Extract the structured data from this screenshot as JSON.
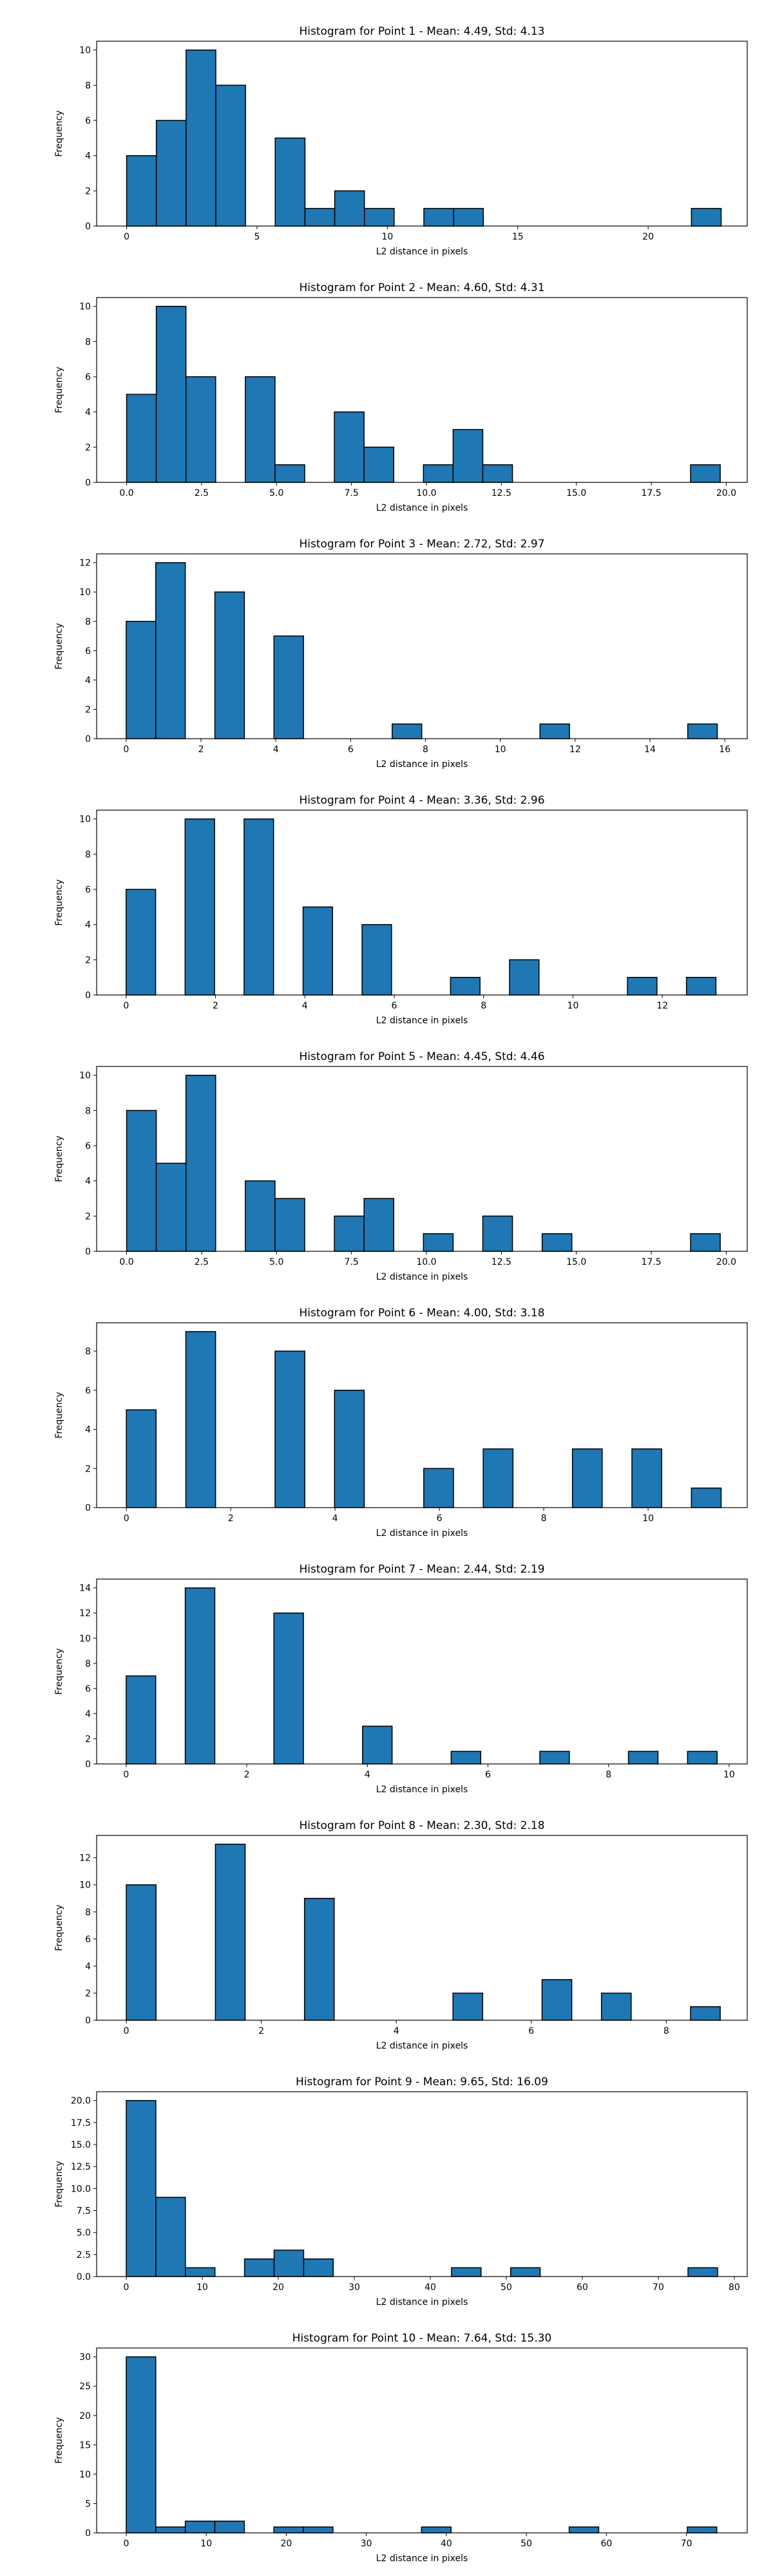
{
  "chart_data": [
    {
      "type": "bar",
      "title": "Histogram for Point 1 - Mean: 4.49, Std: 4.13",
      "xlabel": "L2 distance in pixels",
      "ylabel": "Frequency",
      "xlim": [
        -1.15,
        23.8
      ],
      "ylim": [
        0,
        10.5
      ],
      "xticks": [
        0,
        5,
        10,
        15,
        20
      ],
      "xtick_labels": [
        "0",
        "5",
        "10",
        "15",
        "20"
      ],
      "yticks": [
        0,
        2,
        4,
        6,
        8,
        10
      ],
      "ytick_labels": [
        "0",
        "2",
        "4",
        "6",
        "8",
        "10"
      ],
      "bin_start": 0.0,
      "bin_width": 1.14,
      "values": [
        4,
        6,
        10,
        8,
        0,
        5,
        1,
        2,
        1,
        0,
        1,
        1,
        0,
        0,
        0,
        0,
        0,
        0,
        0,
        1
      ]
    },
    {
      "type": "bar",
      "title": "Histogram for Point 2 - Mean: 4.60, Std: 4.31",
      "xlabel": "L2 distance in pixels",
      "ylabel": "Frequency",
      "xlim": [
        -1.0,
        20.7
      ],
      "ylim": [
        0,
        10.5
      ],
      "xticks": [
        0,
        2.5,
        5,
        7.5,
        10,
        12.5,
        15,
        17.5,
        20
      ],
      "xtick_labels": [
        "0.0",
        "2.5",
        "5.0",
        "7.5",
        "10.0",
        "12.5",
        "15.0",
        "17.5",
        "20.0"
      ],
      "yticks": [
        0,
        2,
        4,
        6,
        8,
        10
      ],
      "ytick_labels": [
        "0",
        "2",
        "4",
        "6",
        "8",
        "10"
      ],
      "bin_start": 0.0,
      "bin_width": 0.99,
      "values": [
        5,
        10,
        6,
        0,
        6,
        1,
        0,
        4,
        2,
        0,
        1,
        3,
        1,
        0,
        0,
        0,
        0,
        0,
        0,
        1
      ]
    },
    {
      "type": "bar",
      "title": "Histogram for Point 3 - Mean: 2.72, Std: 2.97",
      "xlabel": "L2 distance in pixels",
      "ylabel": "Frequency",
      "xlim": [
        -0.79,
        16.6
      ],
      "ylim": [
        0,
        12.6
      ],
      "xticks": [
        0,
        2,
        4,
        6,
        8,
        10,
        12,
        14,
        16
      ],
      "xtick_labels": [
        "0",
        "2",
        "4",
        "6",
        "8",
        "10",
        "12",
        "14",
        "16"
      ],
      "yticks": [
        0,
        2,
        4,
        6,
        8,
        10,
        12
      ],
      "ytick_labels": [
        "0",
        "2",
        "4",
        "6",
        "8",
        "10",
        "12"
      ],
      "bin_start": 0.0,
      "bin_width": 0.79,
      "values": [
        8,
        12,
        0,
        10,
        0,
        7,
        0,
        0,
        0,
        1,
        0,
        0,
        0,
        0,
        1,
        0,
        0,
        0,
        0,
        1
      ]
    },
    {
      "type": "bar",
      "title": "Histogram for Point 4 - Mean: 3.36, Std: 2.96",
      "xlabel": "L2 distance in pixels",
      "ylabel": "Frequency",
      "xlim": [
        -0.66,
        13.9
      ],
      "ylim": [
        0,
        10.5
      ],
      "xticks": [
        0,
        2,
        4,
        6,
        8,
        10,
        12
      ],
      "xtick_labels": [
        "0",
        "2",
        "4",
        "6",
        "8",
        "10",
        "12"
      ],
      "yticks": [
        0,
        2,
        4,
        6,
        8,
        10
      ],
      "ytick_labels": [
        "0",
        "2",
        "4",
        "6",
        "8",
        "10"
      ],
      "bin_start": 0.0,
      "bin_width": 0.66,
      "values": [
        6,
        0,
        10,
        0,
        10,
        0,
        5,
        0,
        4,
        0,
        0,
        1,
        0,
        2,
        0,
        0,
        0,
        1,
        0,
        1
      ]
    },
    {
      "type": "bar",
      "title": "Histogram for Point 5 - Mean: 4.45, Std: 4.46",
      "xlabel": "L2 distance in pixels",
      "ylabel": "Frequency",
      "xlim": [
        -1.0,
        20.7
      ],
      "ylim": [
        0,
        10.5
      ],
      "xticks": [
        0,
        2.5,
        5,
        7.5,
        10,
        12.5,
        15,
        17.5,
        20
      ],
      "xtick_labels": [
        "0.0",
        "2.5",
        "5.0",
        "7.5",
        "10.0",
        "12.5",
        "15.0",
        "17.5",
        "20.0"
      ],
      "yticks": [
        0,
        2,
        4,
        6,
        8,
        10
      ],
      "ytick_labels": [
        "0",
        "2",
        "4",
        "6",
        "8",
        "10"
      ],
      "bin_start": 0.0,
      "bin_width": 0.99,
      "values": [
        8,
        5,
        10,
        0,
        4,
        3,
        0,
        2,
        3,
        0,
        1,
        0,
        2,
        0,
        1,
        0,
        0,
        0,
        0,
        1
      ]
    },
    {
      "type": "bar",
      "title": "Histogram for Point 6 - Mean: 4.00, Std: 3.18",
      "xlabel": "L2 distance in pixels",
      "ylabel": "Frequency",
      "xlim": [
        -0.57,
        11.9
      ],
      "ylim": [
        0,
        9.45
      ],
      "xticks": [
        0,
        2,
        4,
        6,
        8,
        10
      ],
      "xtick_labels": [
        "0",
        "2",
        "4",
        "6",
        "8",
        "10"
      ],
      "yticks": [
        0,
        2,
        4,
        6,
        8
      ],
      "ytick_labels": [
        "0",
        "2",
        "4",
        "6",
        "8"
      ],
      "bin_start": 0.0,
      "bin_width": 0.57,
      "values": [
        5,
        0,
        9,
        0,
        0,
        8,
        0,
        6,
        0,
        0,
        2,
        0,
        3,
        0,
        0,
        3,
        0,
        3,
        0,
        1
      ]
    },
    {
      "type": "bar",
      "title": "Histogram for Point 7 - Mean: 2.44, Std: 2.19",
      "xlabel": "L2 distance in pixels",
      "ylabel": "Frequency",
      "xlim": [
        -0.49,
        10.3
      ],
      "ylim": [
        0,
        14.7
      ],
      "xticks": [
        0,
        2,
        4,
        6,
        8,
        10
      ],
      "xtick_labels": [
        "0",
        "2",
        "4",
        "6",
        "8",
        "10"
      ],
      "yticks": [
        0,
        2,
        4,
        6,
        8,
        10,
        12,
        14
      ],
      "ytick_labels": [
        "0",
        "2",
        "4",
        "6",
        "8",
        "10",
        "12",
        "14"
      ],
      "bin_start": 0.0,
      "bin_width": 0.49,
      "values": [
        7,
        0,
        14,
        0,
        0,
        12,
        0,
        0,
        3,
        0,
        0,
        1,
        0,
        0,
        1,
        0,
        0,
        1,
        0,
        1
      ]
    },
    {
      "type": "bar",
      "title": "Histogram for Point 8 - Mean: 2.30, Std: 2.18",
      "xlabel": "L2 distance in pixels",
      "ylabel": "Frequency",
      "xlim": [
        -0.44,
        9.2
      ],
      "ylim": [
        0,
        13.65
      ],
      "xticks": [
        0,
        2,
        4,
        6,
        8
      ],
      "xtick_labels": [
        "0",
        "2",
        "4",
        "6",
        "8"
      ],
      "yticks": [
        0,
        2,
        4,
        6,
        8,
        10,
        12
      ],
      "ytick_labels": [
        "0",
        "2",
        "4",
        "6",
        "8",
        "10",
        "12"
      ],
      "bin_start": 0.0,
      "bin_width": 0.44,
      "values": [
        10,
        0,
        0,
        13,
        0,
        0,
        9,
        0,
        0,
        0,
        0,
        2,
        0,
        0,
        3,
        0,
        2,
        0,
        0,
        1
      ]
    },
    {
      "type": "bar",
      "title": "Histogram for Point 9 - Mean: 9.65, Std: 16.09",
      "xlabel": "L2 distance in pixels",
      "ylabel": "Frequency",
      "xlim": [
        -3.9,
        81.7
      ],
      "ylim": [
        0,
        21.0
      ],
      "xticks": [
        0,
        10,
        20,
        30,
        40,
        50,
        60,
        70,
        80
      ],
      "xtick_labels": [
        "0",
        "10",
        "20",
        "30",
        "40",
        "50",
        "60",
        "70",
        "80"
      ],
      "yticks": [
        0,
        2.5,
        5,
        7.5,
        10,
        12.5,
        15,
        17.5,
        20
      ],
      "ytick_labels": [
        "0.0",
        "2.5",
        "5.0",
        "7.5",
        "10.0",
        "12.5",
        "15.0",
        "17.5",
        "20.0"
      ],
      "bin_start": 0.0,
      "bin_width": 3.89,
      "values": [
        20,
        9,
        1,
        0,
        2,
        3,
        2,
        0,
        0,
        0,
        0,
        1,
        0,
        1,
        0,
        0,
        0,
        0,
        0,
        1
      ]
    },
    {
      "type": "bar",
      "title": "Histogram for Point 10 - Mean: 7.64, Std: 15.30",
      "xlabel": "L2 distance in pixels",
      "ylabel": "Frequency",
      "xlim": [
        -3.7,
        77.6
      ],
      "ylim": [
        0,
        31.5
      ],
      "xticks": [
        0,
        10,
        20,
        30,
        40,
        50,
        60,
        70
      ],
      "xtick_labels": [
        "0",
        "10",
        "20",
        "30",
        "40",
        "50",
        "60",
        "70"
      ],
      "yticks": [
        0,
        5,
        10,
        15,
        20,
        25,
        30
      ],
      "ytick_labels": [
        "0",
        "5",
        "10",
        "15",
        "20",
        "25",
        "30"
      ],
      "bin_start": 0.0,
      "bin_width": 3.69,
      "values": [
        30,
        1,
        2,
        2,
        0,
        1,
        1,
        0,
        0,
        0,
        1,
        0,
        0,
        0,
        0,
        1,
        0,
        0,
        0,
        1
      ]
    }
  ],
  "colors": {
    "bar_fill": "#1f77b4",
    "bar_edge": "#000000",
    "axes": "#000000",
    "text": "#000000",
    "background": "#ffffff"
  }
}
